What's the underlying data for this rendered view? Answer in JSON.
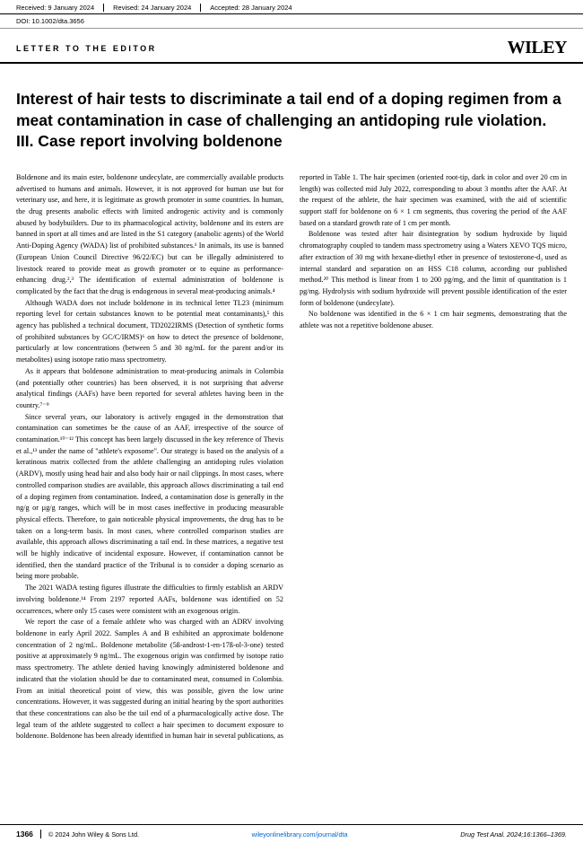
{
  "meta": {
    "received": "Received: 9 January 2024",
    "revised": "Revised: 24 January 2024",
    "accepted": "Accepted: 28 January 2024",
    "doi": "DOI: 10.1002/dta.3656"
  },
  "article_type": "LETTER TO THE EDITOR",
  "publisher": "WILEY",
  "title": "Interest of hair tests to discriminate a tail end of a doping regimen from a meat contamination in case of challenging an antidoping rule violation. III. Case report involving boldenone",
  "body": {
    "p1": "Boldenone and its main ester, boldenone undecylate, are commercially available products advertised to humans and animals. However, it is not approved for human use but for veterinary use, and here, it is legitimate as growth promoter in some countries. In human, the drug presents anabolic effects with limited androgenic activity and is commonly abused by bodybuilders. Due to its pharmacological activity, boldenone and its esters are banned in sport at all times and are listed in the S1 category (anabolic agents) of the World Anti-Doping Agency (WADA) list of prohibited substances.¹ In animals, its use is banned (European Union Council Directive 96/22/EC) but can be illegally administered to livestock reared to provide meat as growth promoter or to equine as performance-enhancing drug.²,³ The identification of external administration of boldenone is complicated by the fact that the drug is endogenous in several meat-producing animals.⁴",
    "p2": "Although WADA does not include boldenone in its technical letter TL23 (minimum reporting level for certain substances known to be potential meat contaminants),⁵ this agency has published a technical document, TD2022IRMS (Detection of synthetic forms of prohibited substances by GC/C/IRMS)⁶ on how to detect the presence of boldenone, particularly at low concentrations (between 5 and 30 ng/mL for the parent and/or its metabolites) using isotope ratio mass spectrometry.",
    "p3": "As it appears that boldenone administration to meat-producing animals in Colombia (and potentially other countries) has been observed, it is not surprising that adverse analytical findings (AAFs) have been reported for several athletes having been in the country.⁷⁻⁹",
    "p4": "Since several years, our laboratory is actively engaged in the demonstration that contamination can sometimes be the cause of an AAF, irrespective of the source of contamination.¹⁰⁻¹² This concept has been largely discussed in the key reference of Thevis et al.,¹³ under the name of \"athlete's exposome\". Our strategy is based on the analysis of a keratinous matrix collected from the athlete challenging an antidoping rules violation (ARDV), mostly using head hair and also body hair or nail clippings. In most cases, where controlled comparison studies are available, this approach allows discriminating a tail end of a doping regimen from contamination. Indeed, a contamination dose is generally in the ng/g or µg/g ranges, which will be in most cases ineffective in producing measurable physical effects. Therefore, to gain noticeable physical improvements, the drug has to be taken on a long-term basis. In most cases, where controlled comparison studies are available, this approach allows discriminating a tail end. In these matrices, a negative test will be highly indicative of incidental exposure. However, if contamination cannot be identified, then the standard practice of the Tribunal is to consider a doping scenario as being more probable.",
    "p5": "The 2021 WADA testing figures illustrate the difficulties to firmly establish an ARDV involving boldenone.¹⁴ From 2197 reported AAFs, boldenone was identified on 52 occurrences, where only 15 cases were consistent with an exogenous origin.",
    "p6": "We report the case of a female athlete who was charged with an ADRV involving boldenone in early April 2022. Samples A and B exhibited an approximate boldenone concentration of 2 ng/mL. Boldenone metabolite (5ß-androst-1-en-17ß-ol-3-one) tested positive at approximately 9 ng/mL. The exogenous origin was confirmed by isotope ratio mass spectrometry. The athlete denied having knowingly administered boldenone and indicated that the violation should be due to contaminated meat, consumed in Colombia. From an initial theoretical point of view, this was possible, given the low urine concentrations. However, it was suggested during an initial hearing by the sport authorities that these concentrations can also be the tail end of a pharmacologically active dose. The legal team of the athlete suggested to collect a hair specimen to document exposure to boldenone. Boldenone has been already identified in human hair in several publications, as reported in Table 1. The hair specimen (oriented root-tip, dark in color and over 20 cm in length) was collected mid July 2022, corresponding to about 3 months after the AAF. At the request of the athlete, the hair specimen was examined, with the aid of scientific support staff for boldenone on 6 × 1 cm segments, thus covering the period of the AAF based on a standard growth rate of 1 cm per month.",
    "p7": "Boldenone was tested after hair disintegration by sodium hydroxide by liquid chromatography coupled to tandem mass spectrometry using a Waters XEVO TQS micro, after extraction of 30 mg with hexane-diethyl ether in presence of testosterone-d₃ used as internal standard and separation on an HSS C18 column, according our published method.²⁰ This method is linear from 1 to 200 pg/mg, and the limit of quantitation is 1 pg/mg. Hydrolysis with sodium hydroxide will prevent possible identification of the ester form of boldenone (undecylate).",
    "p8": "No boldenone was identified in the 6 × 1 cm hair segments, demonstrating that the athlete was not a repetitive boldenone abuser."
  },
  "footer": {
    "page": "1366",
    "copyright": "© 2024 John Wiley & Sons Ltd.",
    "url": "wileyonlinelibrary.com/journal/dta",
    "citation": "Drug Test Anal. 2024;16:1366–1369."
  },
  "colors": {
    "link": "#0066cc",
    "text": "#000000",
    "bg": "#ffffff"
  }
}
